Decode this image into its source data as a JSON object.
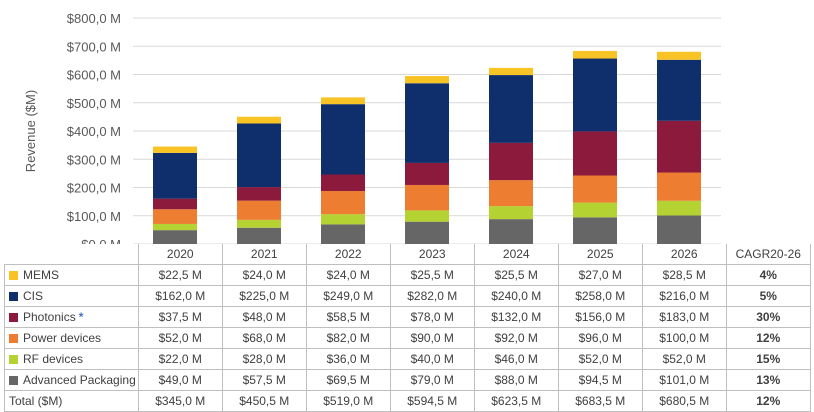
{
  "chart_data": {
    "type": "bar",
    "stacked": true,
    "ylabel": "Revenue ($M)",
    "yticks": [
      "$0,0 M",
      "$100,0 M",
      "$200,0 M",
      "$300,0 M",
      "$400,0 M",
      "$500,0 M",
      "$600,0 M",
      "$700,0 M",
      "$800,0 M"
    ],
    "ylim": [
      0,
      800
    ],
    "grid": true,
    "categories": [
      "2020",
      "2021",
      "2022",
      "2023",
      "2024",
      "2025",
      "2026"
    ],
    "series": [
      {
        "name": "Advanced Packaging",
        "color": "#666666",
        "values": [
          49.0,
          57.5,
          69.5,
          79.0,
          88.0,
          94.5,
          101.0
        ],
        "labels": [
          "$49,0 M",
          "$57,5 M",
          "$69,5 M",
          "$79,0 M",
          "$88,0 M",
          "$94,5 M",
          "$101,0 M"
        ],
        "cagr": "13%"
      },
      {
        "name": "RF devices",
        "color": "#b5d233",
        "values": [
          22.0,
          28.0,
          36.0,
          40.0,
          46.0,
          52.0,
          52.0
        ],
        "labels": [
          "$22,0 M",
          "$28,0 M",
          "$36,0 M",
          "$40,0 M",
          "$46,0 M",
          "$52,0 M",
          "$52,0 M"
        ],
        "cagr": "15%"
      },
      {
        "name": "Power devices",
        "color": "#ed7d31",
        "values": [
          52.0,
          68.0,
          82.0,
          90.0,
          92.0,
          96.0,
          100.0
        ],
        "labels": [
          "$52,0 M",
          "$68,0 M",
          "$82,0 M",
          "$90,0 M",
          "$92,0 M",
          "$96,0 M",
          "$100,0 M"
        ],
        "cagr": "12%"
      },
      {
        "name": "Photonics",
        "marker": "*",
        "color": "#8b1a3c",
        "values": [
          37.5,
          48.0,
          58.5,
          78.0,
          132.0,
          156.0,
          183.0
        ],
        "labels": [
          "$37,5 M",
          "$48,0 M",
          "$58,5 M",
          "$78,0 M",
          "$132,0 M",
          "$156,0 M",
          "$183,0 M"
        ],
        "cagr": "30%"
      },
      {
        "name": "CIS",
        "color": "#0e2f6b",
        "values": [
          162.0,
          225.0,
          249.0,
          282.0,
          240.0,
          258.0,
          216.0
        ],
        "labels": [
          "$162,0 M",
          "$225,0 M",
          "$249,0 M",
          "$282,0 M",
          "$240,0 M",
          "$258,0 M",
          "$216,0 M"
        ],
        "cagr": "5%"
      },
      {
        "name": "MEMS",
        "color": "#f7c325",
        "values": [
          22.5,
          24.0,
          24.0,
          25.5,
          25.5,
          27.0,
          28.5
        ],
        "labels": [
          "$22,5 M",
          "$24,0 M",
          "$24,0 M",
          "$25,5 M",
          "$25,5 M",
          "$27,0 M",
          "$28,5 M"
        ],
        "cagr": "4%"
      }
    ],
    "table_row_order": [
      "MEMS",
      "CIS",
      "Photonics",
      "Power devices",
      "RF devices",
      "Advanced Packaging"
    ],
    "cagr_header": "CAGR20-26",
    "total": {
      "name": "Total ($M)",
      "labels": [
        "$345,0 M",
        "$450,5 M",
        "$519,0 M",
        "$594,5 M",
        "$623,5 M",
        "$683,5 M",
        "$680,5 M"
      ],
      "cagr": "12%"
    }
  }
}
